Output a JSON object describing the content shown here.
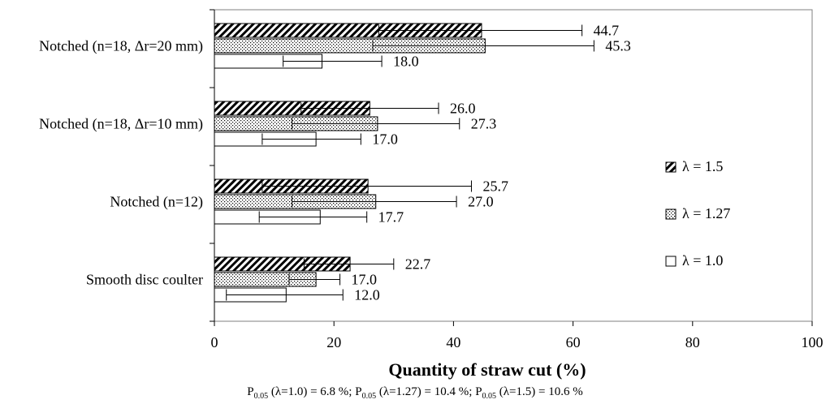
{
  "chart_data": {
    "type": "bar",
    "orientation": "horizontal",
    "categories": [
      "Notched (n=18, Δr=20 mm)",
      "Notched (n=18, Δr=10 mm)",
      "Notched (n=12)",
      "Smooth disc coulter"
    ],
    "series": [
      {
        "name": "λ = 1.5",
        "pattern": "diagonal-hatch",
        "values": [
          44.7,
          26.0,
          25.7,
          22.7
        ],
        "error_low": [
          27.5,
          14.5,
          8.0,
          15.0
        ],
        "error_high": [
          61.5,
          37.5,
          43.0,
          30.0
        ],
        "labels": [
          "44.7",
          "26.0",
          "25.7",
          "22.7"
        ]
      },
      {
        "name": "λ = 1.27",
        "pattern": "dotted",
        "values": [
          45.3,
          27.3,
          27.0,
          17.0
        ],
        "error_low": [
          26.5,
          13.0,
          13.0,
          12.5
        ],
        "error_high": [
          63.5,
          41.0,
          40.5,
          21.0
        ],
        "labels": [
          "45.3",
          "27.3",
          "27.0",
          "17.0"
        ]
      },
      {
        "name": "λ = 1.0",
        "pattern": "plain",
        "values": [
          18.0,
          17.0,
          17.7,
          12.0
        ],
        "error_low": [
          11.5,
          8.0,
          7.5,
          2.0
        ],
        "error_high": [
          28.0,
          24.5,
          25.5,
          21.5
        ],
        "labels": [
          "18.0",
          "17.0",
          "17.7",
          "12.0"
        ]
      }
    ],
    "xlabel": "Quantity of straw cut (%)",
    "xlim": [
      0,
      100
    ],
    "xticks": [
      "0",
      "20",
      "40",
      "60",
      "80",
      "100"
    ],
    "legend_position": "right",
    "grid": false
  },
  "footnote": {
    "p_label": "P",
    "p_sub": "0.05",
    "items": [
      {
        "cond": "(λ=1.0) = 6.8 %",
        "sep": "; "
      },
      {
        "cond": "(λ=1.27) = 10.4 %",
        "sep": "; "
      },
      {
        "cond": "(λ=1.5) = 10.6 %",
        "sep": ""
      }
    ]
  }
}
